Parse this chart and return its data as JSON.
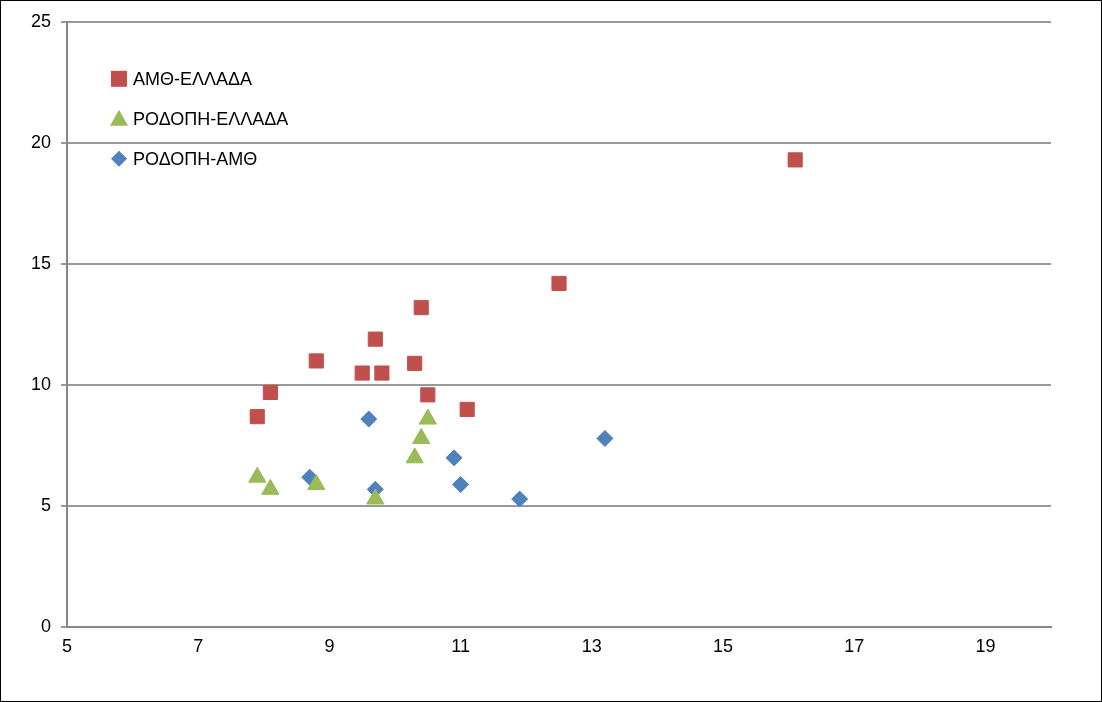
{
  "chart_data": {
    "type": "scatter",
    "xlim": [
      5,
      20
    ],
    "xticks": [
      5,
      7,
      9,
      11,
      13,
      15,
      17,
      19
    ],
    "ylim": [
      0,
      25
    ],
    "yticks": [
      0,
      5,
      10,
      15,
      20,
      25
    ],
    "grid": "y",
    "legend": "top left",
    "series": [
      {
        "name": "ΑΜΘ-ΕΛΛΑΔΑ",
        "color": "#c0504d",
        "marker": "square",
        "x": [
          7.9,
          8.1,
          8.8,
          9.7,
          9.5,
          9.8,
          10.3,
          10.4,
          10.5,
          11.1,
          12.5,
          16.1
        ],
        "values": [
          8.7,
          9.7,
          11.0,
          11.9,
          10.5,
          10.5,
          10.9,
          13.2,
          9.6,
          9.0,
          14.2,
          19.3
        ]
      },
      {
        "name": "ΡΟΔΟΠΗ-ΕΛΛΑΔΑ",
        "color": "#9bbb59",
        "marker": "triangle",
        "x": [
          7.9,
          8.1,
          8.8,
          9.7,
          10.3,
          10.4,
          10.5
        ],
        "values": [
          6.2,
          5.7,
          5.9,
          5.3,
          7.0,
          7.8,
          8.6
        ]
      },
      {
        "name": "ΡΟΔΟΠΗ-ΑΜΘ",
        "color": "#4f81bd",
        "marker": "diamond",
        "x": [
          8.7,
          9.6,
          9.7,
          10.9,
          11.0,
          11.9,
          13.2
        ],
        "values": [
          6.2,
          8.6,
          5.7,
          7.0,
          5.9,
          5.3,
          7.8
        ]
      }
    ]
  }
}
